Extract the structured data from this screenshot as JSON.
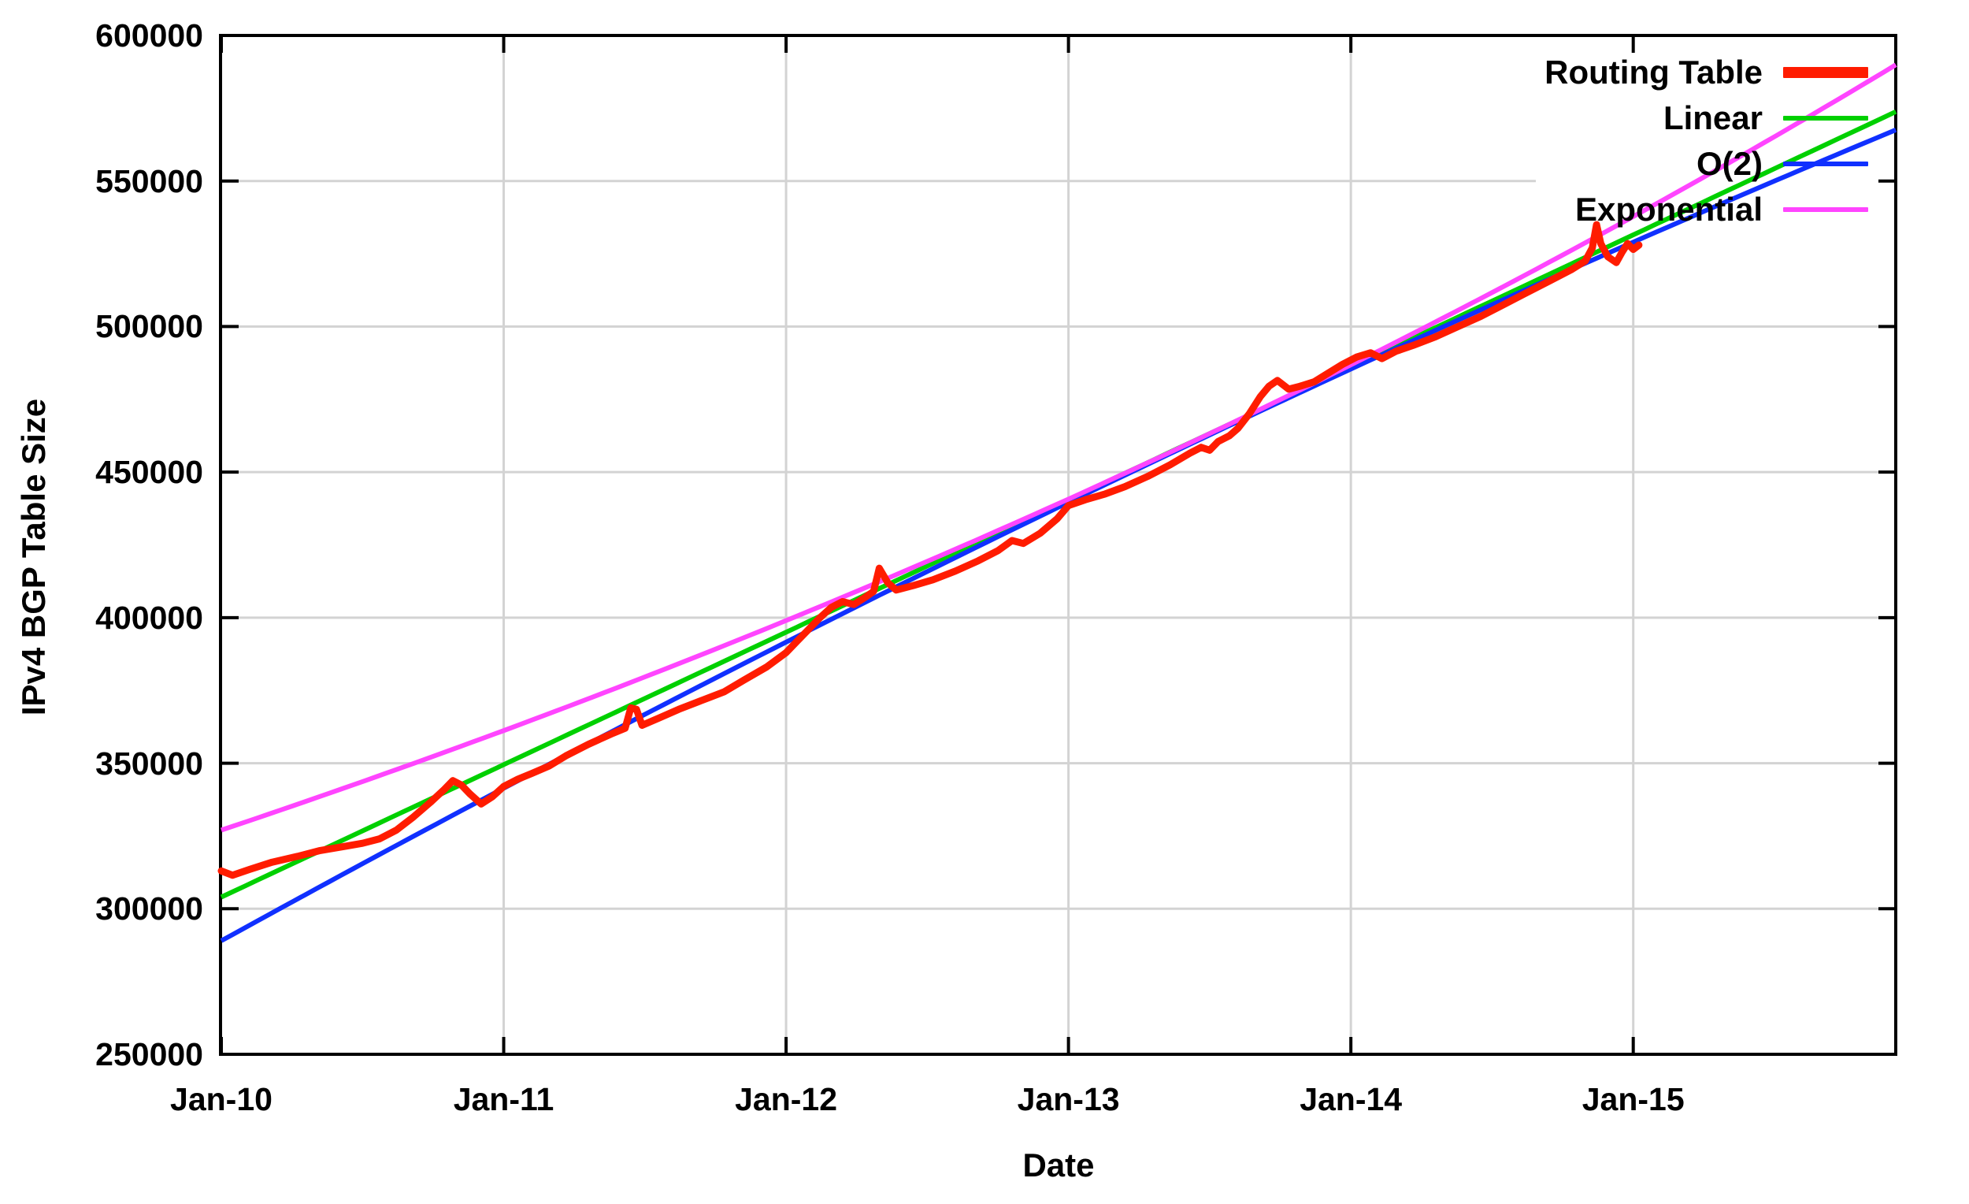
{
  "figure": {
    "xlabel": "Date",
    "ylabel": "IPv4 BGP Table Size",
    "background": "#ffffff",
    "border_color": "#000000",
    "grid_color": "#d3d3d3"
  },
  "legend": {
    "entries": [
      {
        "label": "Routing Table",
        "color": "#ff1c00",
        "swatch_height": 14
      },
      {
        "label": "Linear",
        "color": "#00d000",
        "swatch_height": 6
      },
      {
        "label": "O(2)",
        "color": "#1030ff",
        "swatch_height": 6
      },
      {
        "label": "Exponential",
        "color": "#ff45ff",
        "swatch_height": 6
      }
    ]
  },
  "chart_data": {
    "type": "line",
    "title": "",
    "xlabel": "Date",
    "ylabel": "IPv4 BGP Table Size",
    "grid": true,
    "x_axis": {
      "tick_labels": [
        "Jan-10",
        "Jan-11",
        "Jan-12",
        "Jan-13",
        "Jan-14",
        "Jan-15"
      ],
      "tick_positions_years": [
        0,
        1,
        2,
        3,
        4,
        5
      ],
      "range_years": [
        0,
        5.93
      ]
    },
    "y_axis": {
      "tick_values": [
        250000,
        300000,
        350000,
        400000,
        450000,
        500000,
        550000,
        600000
      ],
      "range": [
        250000,
        600000
      ]
    },
    "series": [
      {
        "name": "Routing Table",
        "kind": "data",
        "color": "#ff1c00",
        "points_years_vs_prefixes": [
          [
            0.0,
            313000
          ],
          [
            0.04,
            311500
          ],
          [
            0.1,
            313500
          ],
          [
            0.18,
            316000
          ],
          [
            0.27,
            318000
          ],
          [
            0.35,
            320000
          ],
          [
            0.44,
            321500
          ],
          [
            0.5,
            322500
          ],
          [
            0.56,
            324000
          ],
          [
            0.62,
            327000
          ],
          [
            0.68,
            331500
          ],
          [
            0.74,
            336500
          ],
          [
            0.79,
            341000
          ],
          [
            0.82,
            344000
          ],
          [
            0.85,
            342500
          ],
          [
            0.88,
            339500
          ],
          [
            0.92,
            336000
          ],
          [
            0.96,
            338500
          ],
          [
            1.0,
            342000
          ],
          [
            1.05,
            344500
          ],
          [
            1.1,
            346500
          ],
          [
            1.16,
            349000
          ],
          [
            1.22,
            352500
          ],
          [
            1.3,
            356500
          ],
          [
            1.38,
            360000
          ],
          [
            1.43,
            362000
          ],
          [
            1.45,
            369000
          ],
          [
            1.47,
            368500
          ],
          [
            1.49,
            363000
          ],
          [
            1.55,
            365500
          ],
          [
            1.62,
            368500
          ],
          [
            1.7,
            371500
          ],
          [
            1.78,
            374500
          ],
          [
            1.85,
            378500
          ],
          [
            1.93,
            383000
          ],
          [
            2.0,
            388000
          ],
          [
            2.04,
            392000
          ],
          [
            2.08,
            396000
          ],
          [
            2.12,
            400000
          ],
          [
            2.16,
            403500
          ],
          [
            2.2,
            405500
          ],
          [
            2.24,
            404500
          ],
          [
            2.28,
            407000
          ],
          [
            2.31,
            409000
          ],
          [
            2.33,
            417000
          ],
          [
            2.36,
            412000
          ],
          [
            2.39,
            409500
          ],
          [
            2.45,
            411000
          ],
          [
            2.52,
            413000
          ],
          [
            2.6,
            416000
          ],
          [
            2.68,
            419500
          ],
          [
            2.75,
            423000
          ],
          [
            2.8,
            426500
          ],
          [
            2.84,
            425500
          ],
          [
            2.9,
            429000
          ],
          [
            2.96,
            434000
          ],
          [
            3.0,
            438500
          ],
          [
            3.06,
            440500
          ],
          [
            3.13,
            442500
          ],
          [
            3.2,
            445000
          ],
          [
            3.28,
            448500
          ],
          [
            3.36,
            452500
          ],
          [
            3.43,
            456500
          ],
          [
            3.47,
            458500
          ],
          [
            3.5,
            457500
          ],
          [
            3.53,
            460500
          ],
          [
            3.57,
            462500
          ],
          [
            3.6,
            465000
          ],
          [
            3.64,
            470000
          ],
          [
            3.68,
            476000
          ],
          [
            3.71,
            479500
          ],
          [
            3.74,
            481500
          ],
          [
            3.78,
            478500
          ],
          [
            3.82,
            479500
          ],
          [
            3.87,
            481000
          ],
          [
            3.92,
            484000
          ],
          [
            3.97,
            487000
          ],
          [
            4.02,
            489500
          ],
          [
            4.07,
            491000
          ],
          [
            4.11,
            489000
          ],
          [
            4.16,
            491500
          ],
          [
            4.22,
            493500
          ],
          [
            4.3,
            496500
          ],
          [
            4.38,
            500000
          ],
          [
            4.46,
            503500
          ],
          [
            4.54,
            507500
          ],
          [
            4.62,
            511500
          ],
          [
            4.7,
            515500
          ],
          [
            4.78,
            519500
          ],
          [
            4.83,
            522500
          ],
          [
            4.855,
            527000
          ],
          [
            4.87,
            535000
          ],
          [
            4.885,
            528500
          ],
          [
            4.91,
            524000
          ],
          [
            4.94,
            522000
          ],
          [
            4.96,
            525500
          ],
          [
            4.98,
            528500
          ],
          [
            5.0,
            526500
          ],
          [
            5.02,
            528000
          ]
        ]
      },
      {
        "name": "Linear",
        "kind": "fit_linear",
        "color": "#00d000",
        "model": {
          "intercept": 304000,
          "slope_per_year": 45500
        }
      },
      {
        "name": "O(2)",
        "kind": "fit_quadratic",
        "color": "#1030ff",
        "model": {
          "a": 289000,
          "b": 53500,
          "c": -1100
        }
      },
      {
        "name": "Exponential",
        "kind": "fit_exponential",
        "color": "#ff45ff",
        "model": {
          "v0": 327000,
          "rate_per_year": 0.0995
        }
      }
    ]
  }
}
